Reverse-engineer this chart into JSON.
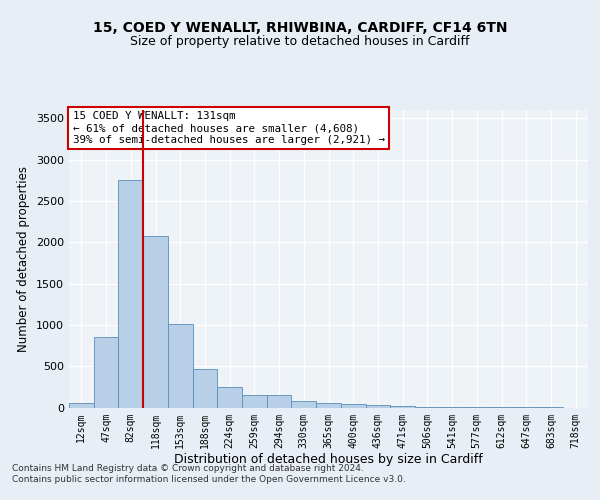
{
  "title_line1": "15, COED Y WENALLT, RHIWBINA, CARDIFF, CF14 6TN",
  "title_line2": "Size of property relative to detached houses in Cardiff",
  "xlabel": "Distribution of detached houses by size in Cardiff",
  "ylabel": "Number of detached properties",
  "bin_labels": [
    "12sqm",
    "47sqm",
    "82sqm",
    "118sqm",
    "153sqm",
    "188sqm",
    "224sqm",
    "259sqm",
    "294sqm",
    "330sqm",
    "365sqm",
    "400sqm",
    "436sqm",
    "471sqm",
    "506sqm",
    "541sqm",
    "577sqm",
    "612sqm",
    "647sqm",
    "683sqm",
    "718sqm"
  ],
  "bar_values": [
    55,
    850,
    2750,
    2080,
    1005,
    460,
    250,
    155,
    155,
    75,
    55,
    40,
    25,
    18,
    10,
    8,
    5,
    3,
    2,
    1,
    0
  ],
  "bar_color": "#b8cfe8",
  "bar_edge_color": "#5b8db8",
  "vline_x": 2.5,
  "vline_color": "#cc0000",
  "ylim": [
    0,
    3600
  ],
  "yticks": [
    0,
    500,
    1000,
    1500,
    2000,
    2500,
    3000,
    3500
  ],
  "annotation_text": "15 COED Y WENALLT: 131sqm\n← 61% of detached houses are smaller (4,608)\n39% of semi-detached houses are larger (2,921) →",
  "annotation_box_color": "#ffffff",
  "annotation_box_edge": "#cc0000",
  "footer_text": "Contains HM Land Registry data © Crown copyright and database right 2024.\nContains public sector information licensed under the Open Government Licence v3.0.",
  "bg_color": "#e8eef5",
  "plot_bg_color": "#eef3f8"
}
